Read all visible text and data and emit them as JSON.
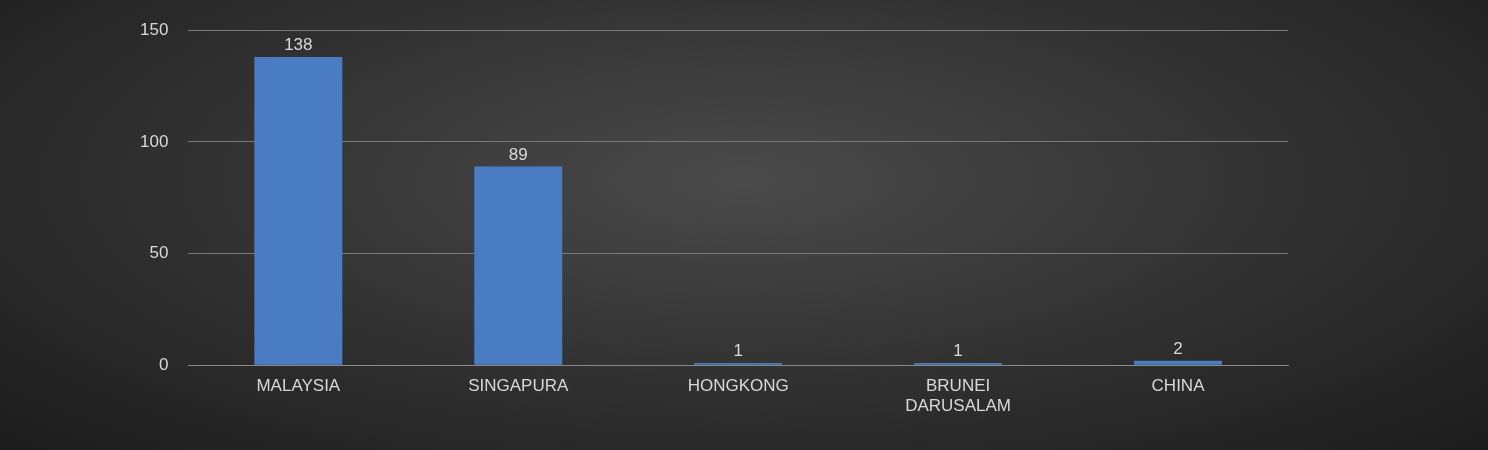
{
  "chart_data": {
    "type": "bar",
    "categories": [
      "MALAYSIA",
      "SINGAPURA",
      "HONGKONG",
      "BRUNEI DARUSALAM",
      "CHINA"
    ],
    "values": [
      138,
      89,
      1,
      1,
      2
    ],
    "color": "#4a7cc4",
    "ylim": [
      0,
      150
    ],
    "yticks": [
      0,
      50,
      100,
      150
    ],
    "grid": "y",
    "data_labels": true
  }
}
